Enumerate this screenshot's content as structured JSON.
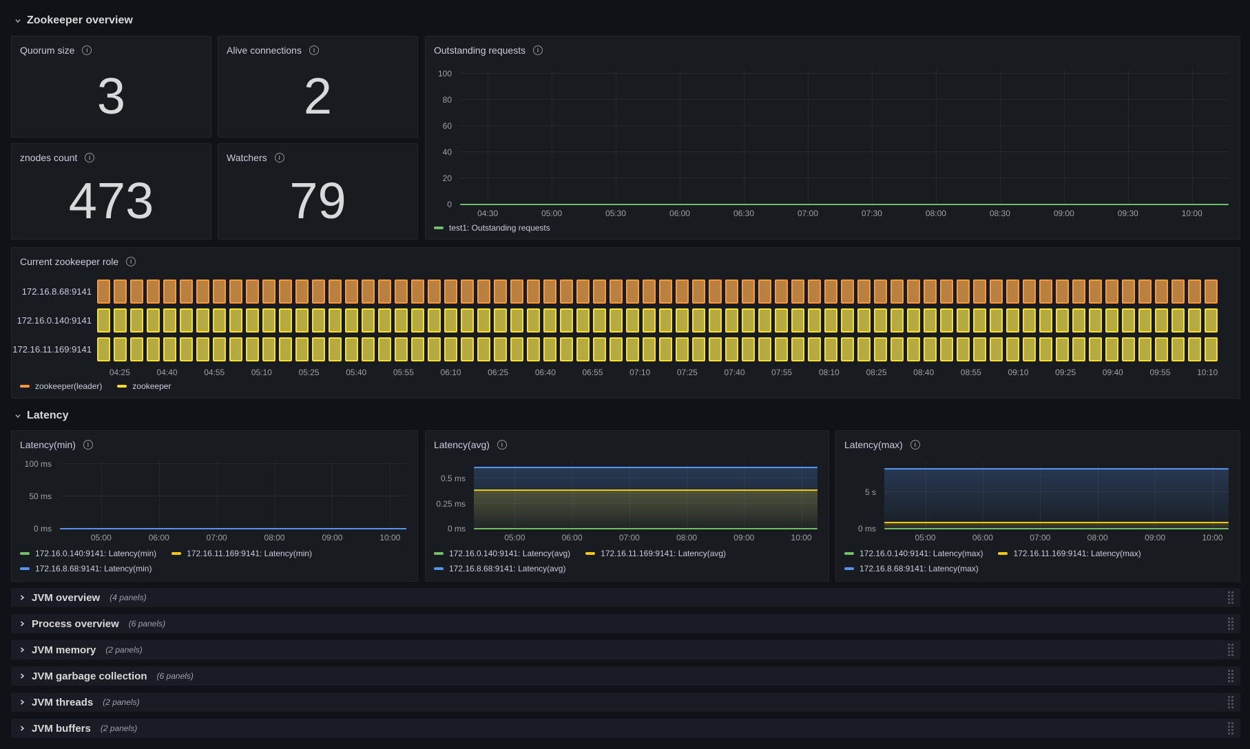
{
  "sections": {
    "overview": "Zookeeper overview",
    "latency": "Latency"
  },
  "stats": [
    {
      "title": "Quorum size",
      "value": "3"
    },
    {
      "title": "Alive connections",
      "value": "2"
    },
    {
      "title": "znodes count",
      "value": "473"
    },
    {
      "title": "Watchers",
      "value": "79"
    }
  ],
  "colors": {
    "green": "#73BF69",
    "yellow": "#F2CC0C",
    "blue": "#5794F2",
    "orange": "#FF9830",
    "timeline_yellow": "#FADE2A"
  },
  "chart_data": [
    {
      "id": "outstanding",
      "type": "line",
      "title": "Outstanding requests",
      "ylim": [
        0,
        104
      ],
      "y_ticks": [
        {
          "label": "100",
          "value": 100
        },
        {
          "label": "80",
          "value": 80
        },
        {
          "label": "60",
          "value": 60
        },
        {
          "label": "40",
          "value": 40
        },
        {
          "label": "20",
          "value": 20
        },
        {
          "label": "0",
          "value": 0
        }
      ],
      "x_ticks": [
        "04:30",
        "05:00",
        "05:30",
        "06:00",
        "06:30",
        "07:00",
        "07:30",
        "08:00",
        "08:30",
        "09:00",
        "09:30",
        "10:00"
      ],
      "x_first_pct": 3.6,
      "x_step_pct": 8.33,
      "series": [
        {
          "name": "test1: Outstanding requests",
          "color": "#73BF69",
          "value": 0,
          "fill": false
        }
      ],
      "legend": [
        {
          "label": "test1: Outstanding requests",
          "color": "#73BF69"
        }
      ]
    },
    {
      "id": "role",
      "type": "state-timeline",
      "title": "Current zookeeper role",
      "rows": [
        {
          "label": "172.16.8.68:9141",
          "state": "zookeeper(leader)"
        },
        {
          "label": "172.16.0.140:9141",
          "state": "zookeeper"
        },
        {
          "label": "172.16.11.169:9141",
          "state": "zookeeper"
        }
      ],
      "states": {
        "zookeeper(leader)": {
          "fill": "#B8813F",
          "border": "#FF9830"
        },
        "zookeeper": {
          "fill": "#B3AB41",
          "border": "#FADE2A"
        }
      },
      "x_ticks": [
        "04:25",
        "04:40",
        "04:55",
        "05:10",
        "05:25",
        "05:40",
        "05:55",
        "06:10",
        "06:25",
        "06:40",
        "06:55",
        "07:10",
        "07:25",
        "07:40",
        "07:55",
        "08:10",
        "08:25",
        "08:40",
        "08:55",
        "09:10",
        "09:25",
        "09:40",
        "09:55",
        "10:10"
      ],
      "x_first_pct": 2.0,
      "x_step_pct": 4.174,
      "legend": [
        {
          "label": "zookeeper(leader)",
          "color": "#FF9830"
        },
        {
          "label": "zookeeper",
          "color": "#FADE2A"
        }
      ]
    },
    {
      "id": "latmin",
      "type": "line",
      "title": "Latency(min)",
      "unit": "ms",
      "ylim": [
        0,
        104
      ],
      "y_ticks": [
        {
          "label": "100 ms",
          "value": 100
        },
        {
          "label": "50 ms",
          "value": 50
        },
        {
          "label": "0 ms",
          "value": 0
        }
      ],
      "x_ticks": [
        "05:00",
        "06:00",
        "07:00",
        "08:00",
        "09:00",
        "10:00"
      ],
      "x_first_pct": 11.9,
      "x_step_pct": 16.68,
      "series": [
        {
          "name": "172.16.0.140:9141: Latency(min)",
          "color": "#73BF69",
          "value": 0,
          "fill": false
        },
        {
          "name": "172.16.11.169:9141: Latency(min)",
          "color": "#F2CC0C",
          "value": 0,
          "fill": false
        },
        {
          "name": "172.16.8.68:9141: Latency(min)",
          "color": "#5794F2",
          "value": 0,
          "fill": false
        }
      ]
    },
    {
      "id": "latavg",
      "type": "line",
      "title": "Latency(avg)",
      "unit": "ms",
      "ylim": [
        0,
        0.675
      ],
      "y_ticks": [
        {
          "label": "0.5 ms",
          "value": 0.5
        },
        {
          "label": "0.25 ms",
          "value": 0.25
        },
        {
          "label": "0 ms",
          "value": 0
        }
      ],
      "x_ticks": [
        "05:00",
        "06:00",
        "07:00",
        "08:00",
        "09:00",
        "10:00"
      ],
      "x_first_pct": 11.9,
      "x_step_pct": 16.68,
      "series": [
        {
          "name": "172.16.0.140:9141: Latency(avg)",
          "color": "#73BF69",
          "value": 0,
          "fill": false
        },
        {
          "name": "172.16.11.169:9141: Latency(avg)",
          "color": "#F2CC0C",
          "value": 0.385,
          "fill": true
        },
        {
          "name": "172.16.8.68:9141: Latency(avg)",
          "color": "#5794F2",
          "value": 0.615,
          "fill": true
        }
      ]
    },
    {
      "id": "latmax",
      "type": "line",
      "title": "Latency(max)",
      "unit": "s",
      "ylim": [
        0,
        9.3
      ],
      "y_ticks": [
        {
          "label": "5 s",
          "value": 5
        },
        {
          "label": "0 ms",
          "value": 0
        }
      ],
      "x_ticks": [
        "05:00",
        "06:00",
        "07:00",
        "08:00",
        "09:00",
        "10:00"
      ],
      "x_first_pct": 11.9,
      "x_step_pct": 16.68,
      "series": [
        {
          "name": "172.16.0.140:9141: Latency(max)",
          "color": "#73BF69",
          "value": 0,
          "fill": false
        },
        {
          "name": "172.16.11.169:9141: Latency(max)",
          "color": "#F2CC0C",
          "value": 0.82,
          "fill": true
        },
        {
          "name": "172.16.8.68:9141: Latency(max)",
          "color": "#5794F2",
          "value": 8.3,
          "fill": true
        }
      ]
    }
  ],
  "rows_collapsed": [
    {
      "title": "JVM overview",
      "count": "(4 panels)"
    },
    {
      "title": "Process overview",
      "count": "(6 panels)"
    },
    {
      "title": "JVM memory",
      "count": "(2 panels)"
    },
    {
      "title": "JVM garbage collection",
      "count": "(6 panels)"
    },
    {
      "title": "JVM threads",
      "count": "(2 panels)"
    },
    {
      "title": "JVM buffers",
      "count": "(2 panels)"
    }
  ]
}
